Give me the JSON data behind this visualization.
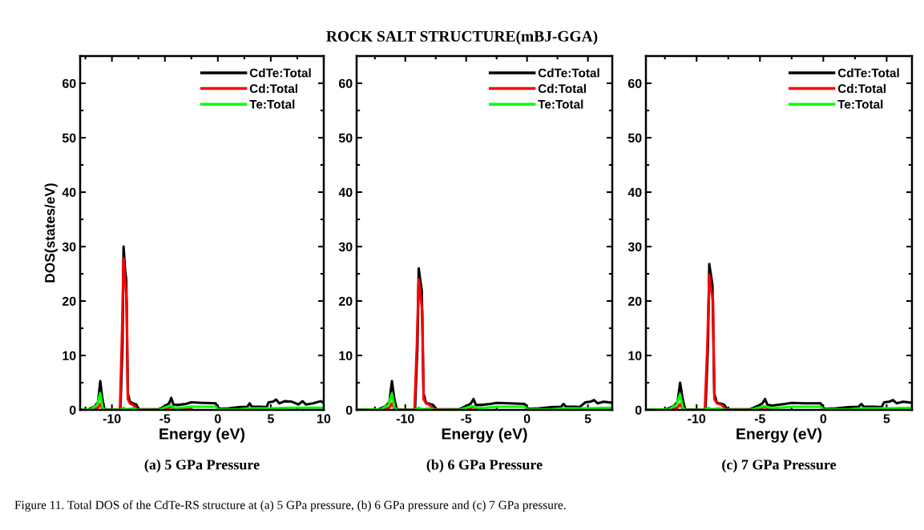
{
  "chart_data": [
    {
      "type": "line",
      "xlabel": "Energy (eV)",
      "ylabel": "DOS(states/eV)",
      "xlim": [
        -13,
        10
      ],
      "ylim": [
        0,
        65
      ],
      "xticks": [
        {
          "value": -12.5,
          "label": null
        },
        -10,
        {
          "value": -7.5,
          "label": null
        },
        -5,
        {
          "value": -2.5,
          "label": null
        },
        0,
        {
          "value": 2.5,
          "label": null
        },
        5,
        {
          "value": 7.5,
          "label": null
        },
        10
      ],
      "yticks": [
        0,
        {
          "value": 5,
          "label": null
        },
        10,
        {
          "value": 15,
          "label": null
        },
        20,
        {
          "value": 25,
          "label": null
        },
        30,
        {
          "value": 35,
          "label": null
        },
        40,
        {
          "value": 45,
          "label": null
        },
        50,
        {
          "value": 55,
          "label": null
        },
        60
      ],
      "legend": "top right",
      "grid": false,
      "marker": "none",
      "line_style": "solid",
      "annotations": [
        "(a) 5 GPa Pressure",
        "Figure 11. Total DOS of the CdTe-RS structure at (a) 5 GPa pressure, (b) 6 GPa pressure and (c) 7 GPa pressure."
      ],
      "series": [
        {
          "name": "CdTe:Total",
          "color": "#000000",
          "x": [
            -13,
            -12.2,
            -11.6,
            -11.3,
            -11.1,
            -10.9,
            -10.7,
            -9.5,
            -9.2,
            -9.0,
            -8.9,
            -8.75,
            -8.65,
            -8.5,
            -8.3,
            -8.0,
            -7.7,
            -7.5,
            -5.6,
            -5.0,
            -4.6,
            -4.4,
            -4.2,
            -3.8,
            -3.0,
            -2.5,
            -1.5,
            -0.2,
            0,
            0.3,
            1,
            2,
            2.8,
            3.0,
            3.2,
            4,
            4.6,
            4.8,
            5.2,
            5.5,
            5.8,
            6.3,
            7,
            7.6,
            8,
            8.3,
            9,
            9.7,
            10
          ],
          "values": [
            0,
            0.1,
            0.7,
            1.5,
            5.3,
            2,
            0.1,
            0,
            0.1,
            12,
            30,
            25.5,
            24,
            3,
            1.5,
            1.2,
            1,
            0.1,
            0.1,
            0.7,
            1.2,
            2.2,
            1,
            0.9,
            1.1,
            1.4,
            1.3,
            1.2,
            0.4,
            0.2,
            0.3,
            0.5,
            0.6,
            1.2,
            0.6,
            0.6,
            0.5,
            1.4,
            1.5,
            1.9,
            1.2,
            1.6,
            1.5,
            1.0,
            1.6,
            1.0,
            1.2,
            1.6,
            1.3
          ]
        },
        {
          "name": "Cd:Total",
          "color": "#ff0000",
          "x": [
            -13,
            -12,
            -11.3,
            -11.1,
            -10.9,
            -10.7,
            -9.25,
            -9.2,
            -9.05,
            -8.9,
            -8.75,
            -8.6,
            -8.5,
            -8.3,
            -8,
            -7.6,
            -5.6,
            -4.6,
            -4.4,
            -4,
            -2.5
          ],
          "values": [
            0,
            0,
            0.4,
            1.1,
            0.2,
            0,
            0,
            3,
            14,
            27.8,
            23.5,
            20,
            2,
            1.2,
            0.9,
            0.1,
            0,
            0.4,
            0.5,
            0.2,
            0.3
          ]
        },
        {
          "name": "Te:Total",
          "color": "#00ff00",
          "x": [
            -13,
            -12,
            -11.4,
            -11.1,
            -10.9,
            -10.7,
            -9.2,
            -8.9,
            -8.6,
            -8,
            -7.6,
            -5.6,
            -4.5,
            -4,
            -2.5,
            -0.2,
            0,
            2,
            3,
            5,
            7,
            10
          ],
          "values": [
            0,
            0.1,
            0.9,
            3.1,
            0.5,
            0,
            0,
            0.4,
            0.1,
            0.3,
            0,
            0,
            0.8,
            0.3,
            0.6,
            0.6,
            0.1,
            0.1,
            0.3,
            0.3,
            0.4,
            0.4
          ]
        }
      ]
    },
    {
      "type": "line",
      "title": "ROCK SALT STRUCTURE(mBJ-GGA)",
      "xlabel": "Energy (eV)",
      "xlim": [
        -14,
        7
      ],
      "ylim": [
        0,
        65
      ],
      "xticks": [
        {
          "value": -12.5,
          "label": null
        },
        -10,
        {
          "value": -7.5,
          "label": null
        },
        -5,
        {
          "value": -2.5,
          "label": null
        },
        0,
        {
          "value": 2.5,
          "label": null
        },
        5
      ],
      "yticks": [
        0,
        {
          "value": 5,
          "label": null
        },
        10,
        {
          "value": 15,
          "label": null
        },
        20,
        {
          "value": 25,
          "label": null
        },
        30,
        {
          "value": 35,
          "label": null
        },
        40,
        {
          "value": 45,
          "label": null
        },
        50,
        {
          "value": 55,
          "label": null
        },
        60
      ],
      "legend": "top right",
      "grid": false,
      "marker": "none",
      "line_style": "solid",
      "annotations": [
        "(b) 6 GPa Pressure"
      ],
      "series": [
        {
          "name": "CdTe:Total",
          "color": "#000000",
          "x": [
            -14,
            -12.2,
            -11.6,
            -11.3,
            -11.1,
            -10.9,
            -10.7,
            -9.5,
            -9.2,
            -9.0,
            -8.9,
            -8.75,
            -8.65,
            -8.5,
            -8.3,
            -8.0,
            -7.7,
            -7.5,
            -5.6,
            -5.0,
            -4.6,
            -4.4,
            -4.2,
            -3.8,
            -3.0,
            -2.5,
            -1.5,
            -0.2,
            0,
            0.3,
            1,
            2,
            2.8,
            3.0,
            3.2,
            4,
            4.3,
            4.8,
            5.2,
            5.5,
            5.8,
            6.3,
            7
          ],
          "values": [
            0,
            0.1,
            0.7,
            1.5,
            5.3,
            2,
            0.1,
            0,
            0.1,
            12,
            26,
            23.5,
            22,
            3,
            1.3,
            1.1,
            0.9,
            0.1,
            0.1,
            0.7,
            1.2,
            2.0,
            0.9,
            0.9,
            1.1,
            1.3,
            1.2,
            1.1,
            0.3,
            0.2,
            0.3,
            0.5,
            0.6,
            1.1,
            0.6,
            0.6,
            0.5,
            1.4,
            1.5,
            1.8,
            1.2,
            1.5,
            1.3
          ]
        },
        {
          "name": "Cd:Total",
          "color": "#ff0000",
          "x": [
            -14,
            -12,
            -11.3,
            -11.1,
            -10.9,
            -10.7,
            -9.25,
            -9.2,
            -9.05,
            -8.9,
            -8.75,
            -8.6,
            -8.5,
            -8.3,
            -8,
            -7.6,
            -5.6,
            -4.6,
            -4.4,
            -4
          ],
          "values": [
            0,
            0,
            0.4,
            1.2,
            0.2,
            0,
            0,
            3,
            12,
            24,
            21,
            18,
            2,
            1.2,
            0.9,
            0.1,
            0,
            0.4,
            0.5,
            0.2
          ]
        },
        {
          "name": "Te:Total",
          "color": "#00ff00",
          "x": [
            -14,
            -12,
            -11.4,
            -11.1,
            -10.9,
            -10.7,
            -9.2,
            -8.9,
            -8.6,
            -8,
            -7.6,
            -5.6,
            -4.5,
            -4,
            -2.5,
            -0.2,
            0,
            2,
            3,
            5,
            7
          ],
          "values": [
            0,
            0.1,
            0.9,
            3.0,
            0.5,
            0,
            0,
            0.4,
            0.1,
            0.3,
            0,
            0,
            0.7,
            0.3,
            0.6,
            0.6,
            0.1,
            0.1,
            0.3,
            0.3,
            0.4
          ]
        }
      ]
    },
    {
      "type": "line",
      "xlabel": "Energy (eV)",
      "xlim": [
        -14,
        7
      ],
      "ylim": [
        0,
        65
      ],
      "xticks": [
        {
          "value": -12.5,
          "label": null
        },
        -10,
        {
          "value": -7.5,
          "label": null
        },
        -5,
        {
          "value": -2.5,
          "label": null
        },
        0,
        {
          "value": 2.5,
          "label": null
        },
        5
      ],
      "yticks": [
        0,
        {
          "value": 5,
          "label": null
        },
        10,
        {
          "value": 15,
          "label": null
        },
        20,
        {
          "value": 25,
          "label": null
        },
        30,
        {
          "value": 35,
          "label": null
        },
        40,
        {
          "value": 45,
          "label": null
        },
        50,
        {
          "value": 55,
          "label": null
        },
        60
      ],
      "legend": "top right",
      "grid": false,
      "marker": "none",
      "line_style": "solid",
      "annotations": [
        "(c) 7 GPa Pressure"
      ],
      "series": [
        {
          "name": "CdTe:Total",
          "color": "#000000",
          "x": [
            -14,
            -12.4,
            -11.8,
            -11.5,
            -11.3,
            -11.1,
            -10.9,
            -9.5,
            -9.3,
            -9.1,
            -9.0,
            -8.85,
            -8.75,
            -8.6,
            -8.4,
            -8.0,
            -7.8,
            -7.6,
            -5.8,
            -5.2,
            -4.8,
            -4.6,
            -4.4,
            -4.0,
            -3.0,
            -2.5,
            -1.5,
            -0.2,
            0,
            0.3,
            1,
            2,
            2.8,
            3.0,
            3.2,
            4,
            4.6,
            4.8,
            5.2,
            5.5,
            5.8,
            6.3,
            7
          ],
          "values": [
            0,
            0.1,
            0.7,
            1.5,
            5.0,
            2,
            0.1,
            0,
            0.1,
            12,
            26.8,
            24.5,
            23,
            3,
            1.3,
            1.1,
            0.9,
            0.1,
            0.1,
            0.7,
            1.2,
            2.0,
            0.9,
            0.8,
            1.1,
            1.3,
            1.2,
            1.2,
            0.3,
            0.2,
            0.3,
            0.5,
            0.6,
            1.1,
            0.6,
            0.6,
            0.5,
            1.4,
            1.5,
            1.8,
            1.2,
            1.5,
            1.3
          ]
        },
        {
          "name": "Cd:Total",
          "color": "#ff0000",
          "x": [
            -14,
            -12.2,
            -11.5,
            -11.3,
            -11.1,
            -10.9,
            -9.35,
            -9.3,
            -9.15,
            -9.0,
            -8.85,
            -8.7,
            -8.6,
            -8.4,
            -8,
            -7.7,
            -5.8,
            -4.8,
            -4.6,
            -4.2
          ],
          "values": [
            0,
            0,
            0.4,
            1.1,
            0.2,
            0,
            0,
            3,
            12,
            24.8,
            22,
            20,
            2,
            1.2,
            0.9,
            0.1,
            0,
            0.4,
            0.5,
            0.2
          ]
        },
        {
          "name": "Te:Total",
          "color": "#00ff00",
          "x": [
            -14,
            -12.2,
            -11.6,
            -11.3,
            -11.1,
            -10.9,
            -9.4,
            -9.1,
            -8.8,
            -8.2,
            -7.8,
            -5.8,
            -4.6,
            -4.1,
            -2.5,
            -0.2,
            0,
            2,
            3,
            5,
            7
          ],
          "values": [
            0,
            0.1,
            0.9,
            2.9,
            0.5,
            0,
            0,
            0.4,
            0.1,
            0.3,
            0,
            0,
            0.7,
            0.3,
            0.6,
            0.6,
            0.1,
            0.1,
            0.3,
            0.3,
            0.4
          ]
        }
      ]
    }
  ]
}
